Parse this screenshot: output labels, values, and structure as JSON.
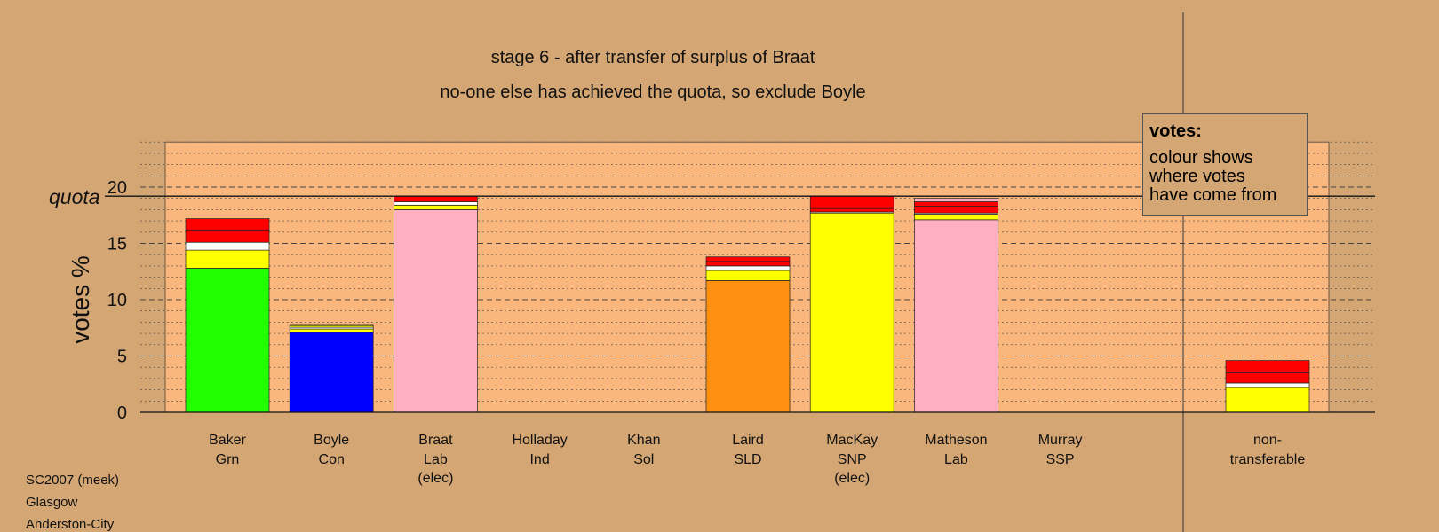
{
  "titles": {
    "line1": "stage 6 - after transfer of surplus of Braat",
    "line2": "no-one else has achieved the quota, so exclude Boyle"
  },
  "legend": {
    "title": "votes:",
    "lines": [
      "colour shows",
      "where votes",
      "have come from"
    ]
  },
  "footer": [
    "SC2007 (meek)",
    "Glasgow",
    "Anderston-City"
  ],
  "colors": {
    "background": "#d4a674",
    "plot_band": "#f9b77e",
    "Grn": "#22ff00",
    "Con": "#0000ff",
    "Lab": "#ffafc0",
    "SLD": "#ff8f0f",
    "SNP": "#ffff00",
    "transfer_red": "#ff0000",
    "transfer_white": "#ffffff"
  },
  "chart_data": {
    "type": "bar",
    "stacked": true,
    "ylabel": "votes %",
    "ylim": [
      0,
      24
    ],
    "yticks": [
      0,
      5,
      10,
      15,
      20
    ],
    "quota_label": "quota",
    "quota": 19.2,
    "grid": "dashed major, dotted minor",
    "legend_placement": "top-right",
    "candidates": [
      {
        "name": "Baker",
        "party": "Grn",
        "note": "",
        "segments": [
          {
            "color": "Grn",
            "value": 12.8
          },
          {
            "color": "SNP",
            "value": 1.6
          },
          {
            "color": "transfer_white",
            "value": 0.7
          },
          {
            "color": "transfer_red",
            "value": 1.1
          },
          {
            "color": "transfer_red",
            "value": 1.0
          }
        ]
      },
      {
        "name": "Boyle",
        "party": "Con",
        "note": "",
        "segments": [
          {
            "color": "Con",
            "value": 7.1
          },
          {
            "color": "SNP",
            "value": 0.3
          },
          {
            "color": "transfer_white",
            "value": 0.15
          },
          {
            "color": "SNP",
            "value": 0.15
          },
          {
            "color": "transfer_red",
            "value": 0.1
          }
        ]
      },
      {
        "name": "Braat",
        "party": "Lab",
        "note": "(elec)",
        "segments": [
          {
            "color": "Lab",
            "value": 18.0
          },
          {
            "color": "SNP",
            "value": 0.4
          },
          {
            "color": "transfer_white",
            "value": 0.3
          },
          {
            "color": "transfer_red",
            "value": 0.5
          }
        ]
      },
      {
        "name": "Holladay",
        "party": "Ind",
        "note": "",
        "segments": []
      },
      {
        "name": "Khan",
        "party": "Sol",
        "note": "",
        "segments": []
      },
      {
        "name": "Laird",
        "party": "SLD",
        "note": "",
        "segments": [
          {
            "color": "SLD",
            "value": 11.7
          },
          {
            "color": "SNP",
            "value": 0.9
          },
          {
            "color": "transfer_white",
            "value": 0.4
          },
          {
            "color": "transfer_red",
            "value": 0.4
          },
          {
            "color": "transfer_red",
            "value": 0.4
          }
        ]
      },
      {
        "name": "MacKay",
        "party": "SNP",
        "note": "(elec)",
        "segments": [
          {
            "color": "SNP",
            "value": 17.7
          },
          {
            "color": "transfer_white",
            "value": 0.1
          },
          {
            "color": "transfer_red",
            "value": 0.3
          },
          {
            "color": "transfer_red",
            "value": 1.1
          }
        ]
      },
      {
        "name": "Matheson",
        "party": "Lab",
        "note": "",
        "segments": [
          {
            "color": "Lab",
            "value": 17.1
          },
          {
            "color": "SNP",
            "value": 0.5
          },
          {
            "color": "transfer_white",
            "value": 0.1
          },
          {
            "color": "transfer_red",
            "value": 0.6
          },
          {
            "color": "transfer_red",
            "value": 0.4
          },
          {
            "color": "Lab",
            "value": 0.3
          }
        ]
      },
      {
        "name": "Murray",
        "party": "SSP",
        "note": "",
        "segments": []
      },
      {
        "name": "non-",
        "party": "transferable",
        "note": "",
        "segments": [
          {
            "color": "SNP",
            "value": 2.2
          },
          {
            "color": "transfer_white",
            "value": 0.4
          },
          {
            "color": "transfer_red",
            "value": 0.9
          },
          {
            "color": "transfer_red",
            "value": 1.1
          }
        ]
      }
    ]
  }
}
